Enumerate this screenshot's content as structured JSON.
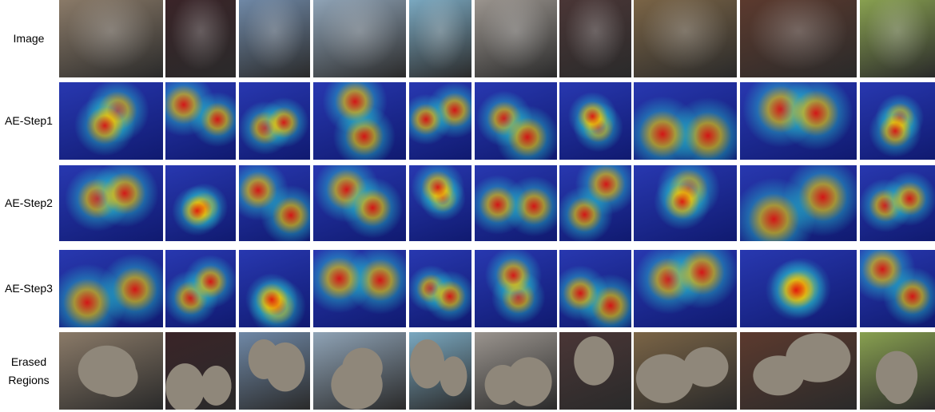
{
  "rows": [
    {
      "label": "Image"
    },
    {
      "label": "AE-Step1"
    },
    {
      "label": "AE-Step2"
    },
    {
      "label": "AE-Step3"
    },
    {
      "label": "Erased Regions"
    }
  ]
}
